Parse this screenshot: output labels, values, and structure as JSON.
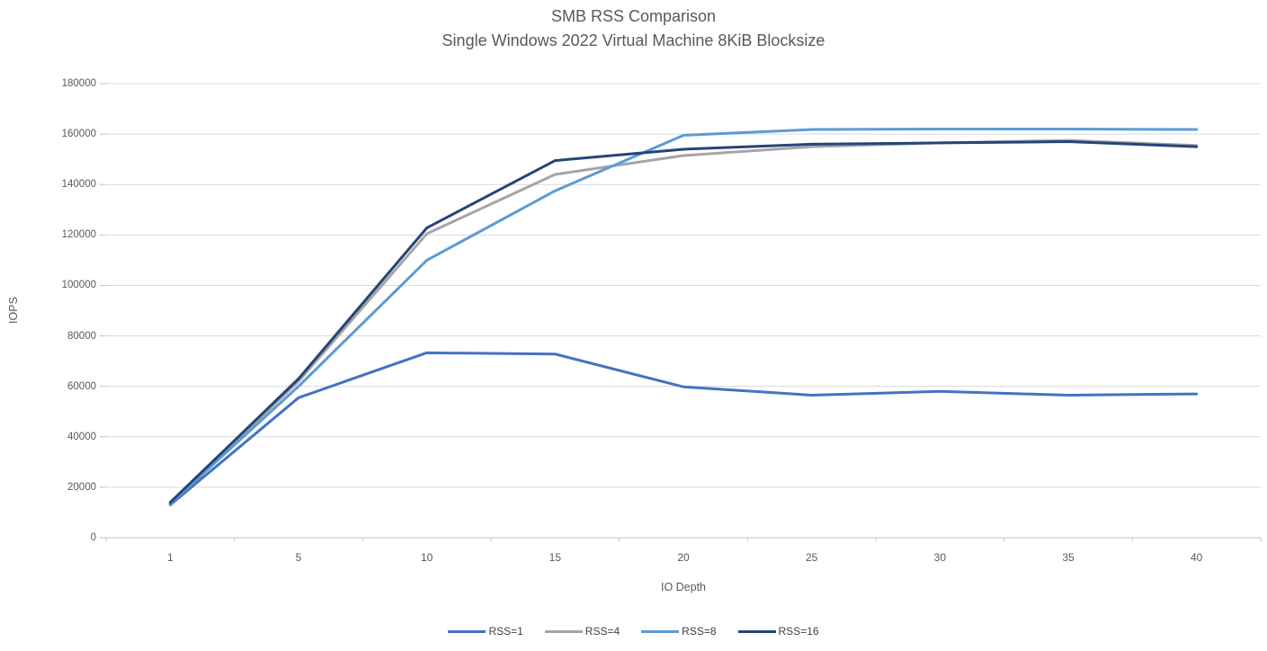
{
  "chart_data": {
    "type": "line",
    "title": "SMB RSS Comparison",
    "subtitle": "Single Windows 2022 Virtual Machine 8KiB Blocksize",
    "xlabel": "IO Depth",
    "ylabel": "IOPS",
    "categories": [
      "1",
      "5",
      "10",
      "15",
      "20",
      "25",
      "30",
      "35",
      "40"
    ],
    "ylim": [
      0,
      180000
    ],
    "ytick_step": 20000,
    "grid": true,
    "legend_position": "bottom",
    "series": [
      {
        "name": "RSS=1",
        "color": "#4472C4",
        "values": [
          13000,
          55500,
          73300,
          72800,
          59800,
          56500,
          58000,
          56500,
          57000
        ]
      },
      {
        "name": "RSS=4",
        "color": "#A5A5A5",
        "values": [
          13500,
          62000,
          120500,
          144000,
          151500,
          155000,
          156500,
          157500,
          155500
        ]
      },
      {
        "name": "RSS=8",
        "color": "#5B9BD5",
        "values": [
          13500,
          60000,
          110000,
          137500,
          159500,
          161800,
          162000,
          162000,
          161800
        ]
      },
      {
        "name": "RSS=16",
        "color": "#264478",
        "values": [
          14000,
          63000,
          122800,
          149500,
          154000,
          156000,
          156500,
          157000,
          155000
        ]
      }
    ],
    "colors": {
      "grid": "#D9D9D9",
      "axis": "#BFBFBF",
      "text": "#595959"
    }
  }
}
